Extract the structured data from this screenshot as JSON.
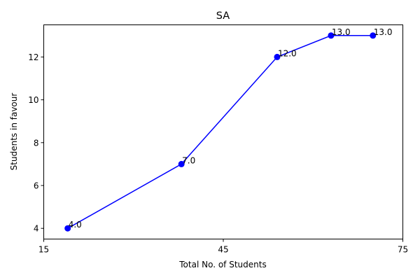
{
  "chart_data": {
    "type": "line",
    "title": "SA",
    "xlabel": "Total No. of Students",
    "ylabel": "Students in favour",
    "xlim": [
      15,
      75
    ],
    "ylim": [
      3.5,
      13.5
    ],
    "xticks": [
      15,
      45,
      75
    ],
    "yticks": [
      4,
      6,
      8,
      10,
      12
    ],
    "grid": false,
    "color": "#0000ff",
    "series": [
      {
        "x": [
          19,
          38,
          54,
          63,
          70
        ],
        "y": [
          4.0,
          7.0,
          12.0,
          13.0,
          13.0
        ],
        "labels": [
          "4.0",
          "7.0",
          "12.0",
          "13.0",
          "13.0"
        ]
      }
    ]
  }
}
